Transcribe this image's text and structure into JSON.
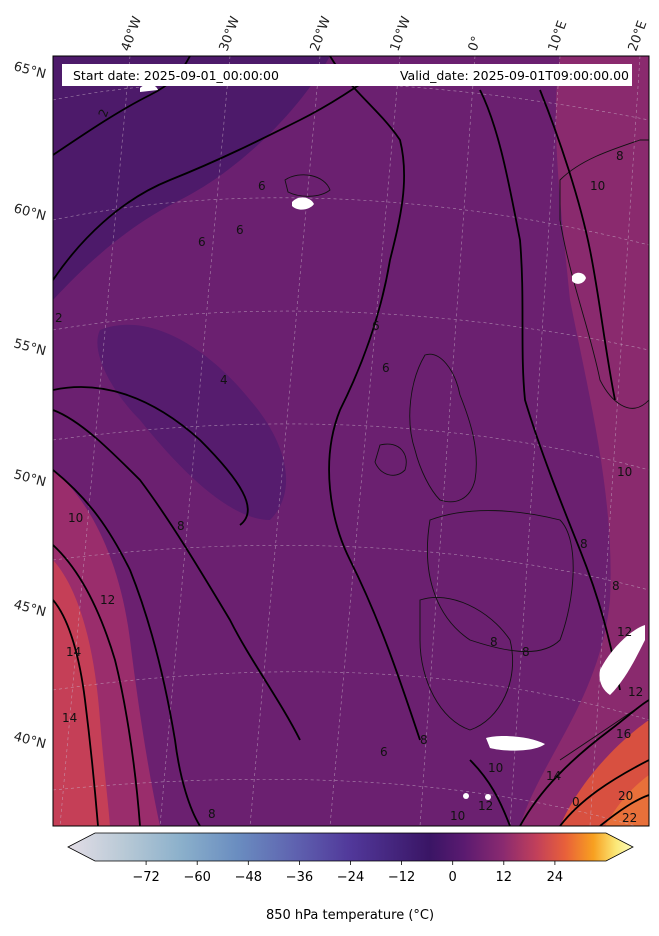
{
  "header": {
    "start_date": "Start date: 2025-09-01_00:00:00",
    "valid_date": "Valid_date: 2025-09-01T09:00:00.00"
  },
  "longitude_labels": [
    "40°W",
    "30°W",
    "20°W",
    "10°W",
    "0°",
    "10°E",
    "20°E"
  ],
  "latitude_labels": [
    "65°N",
    "60°N",
    "55°N",
    "50°N",
    "45°N",
    "40°N"
  ],
  "contour_labels": [
    "2",
    "2",
    "4",
    "6",
    "6",
    "6",
    "6",
    "6",
    "6",
    "8",
    "8",
    "8",
    "8",
    "8",
    "8",
    "8",
    "8",
    "10",
    "10",
    "10",
    "10",
    "10",
    "12",
    "12",
    "12",
    "12",
    "14",
    "14",
    "14",
    "16",
    "20",
    "22",
    "0"
  ],
  "colorbar": {
    "ticks": [
      "−72",
      "−60",
      "−48",
      "−36",
      "−24",
      "−12",
      "0",
      "12",
      "24"
    ],
    "label": "850 hPa temperature (°C)",
    "range": [
      -84,
      36
    ],
    "colors": [
      "#e3dde6",
      "#b8c9d6",
      "#8bb0cb",
      "#6a8dc0",
      "#5f63b0",
      "#51389a",
      "#3a1565",
      "#5a1a70",
      "#8a2a70",
      "#c2405a",
      "#e8603a",
      "#f8a020",
      "#fbe878",
      "#fcfdbf"
    ]
  },
  "field_colors": {
    "cold": "#4a1a6c",
    "base": "#6b2070",
    "warm": "#9a2d6c",
    "hot": "#d34b49",
    "hottest": "#e8673c"
  }
}
